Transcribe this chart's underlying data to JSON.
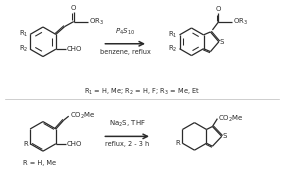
{
  "fig_width": 2.84,
  "fig_height": 1.89,
  "dpi": 100,
  "lw": 0.9,
  "lc": "#2a2a2a",
  "tc": "#2a2a2a",
  "fs": 5.0,
  "reaction1_reagent": "P$_4$S$_{10}$",
  "reaction1_conditions": "benzene, reflux",
  "reaction2_reagent": "Na$_2$S, THF",
  "reaction2_conditions": "reflux, 2 - 3 h",
  "reaction1_variables": "R$_1$ = H, Me; R$_2$ = H, F; R$_3$ = Me, Et",
  "reaction2_variables": "R = H, Me"
}
